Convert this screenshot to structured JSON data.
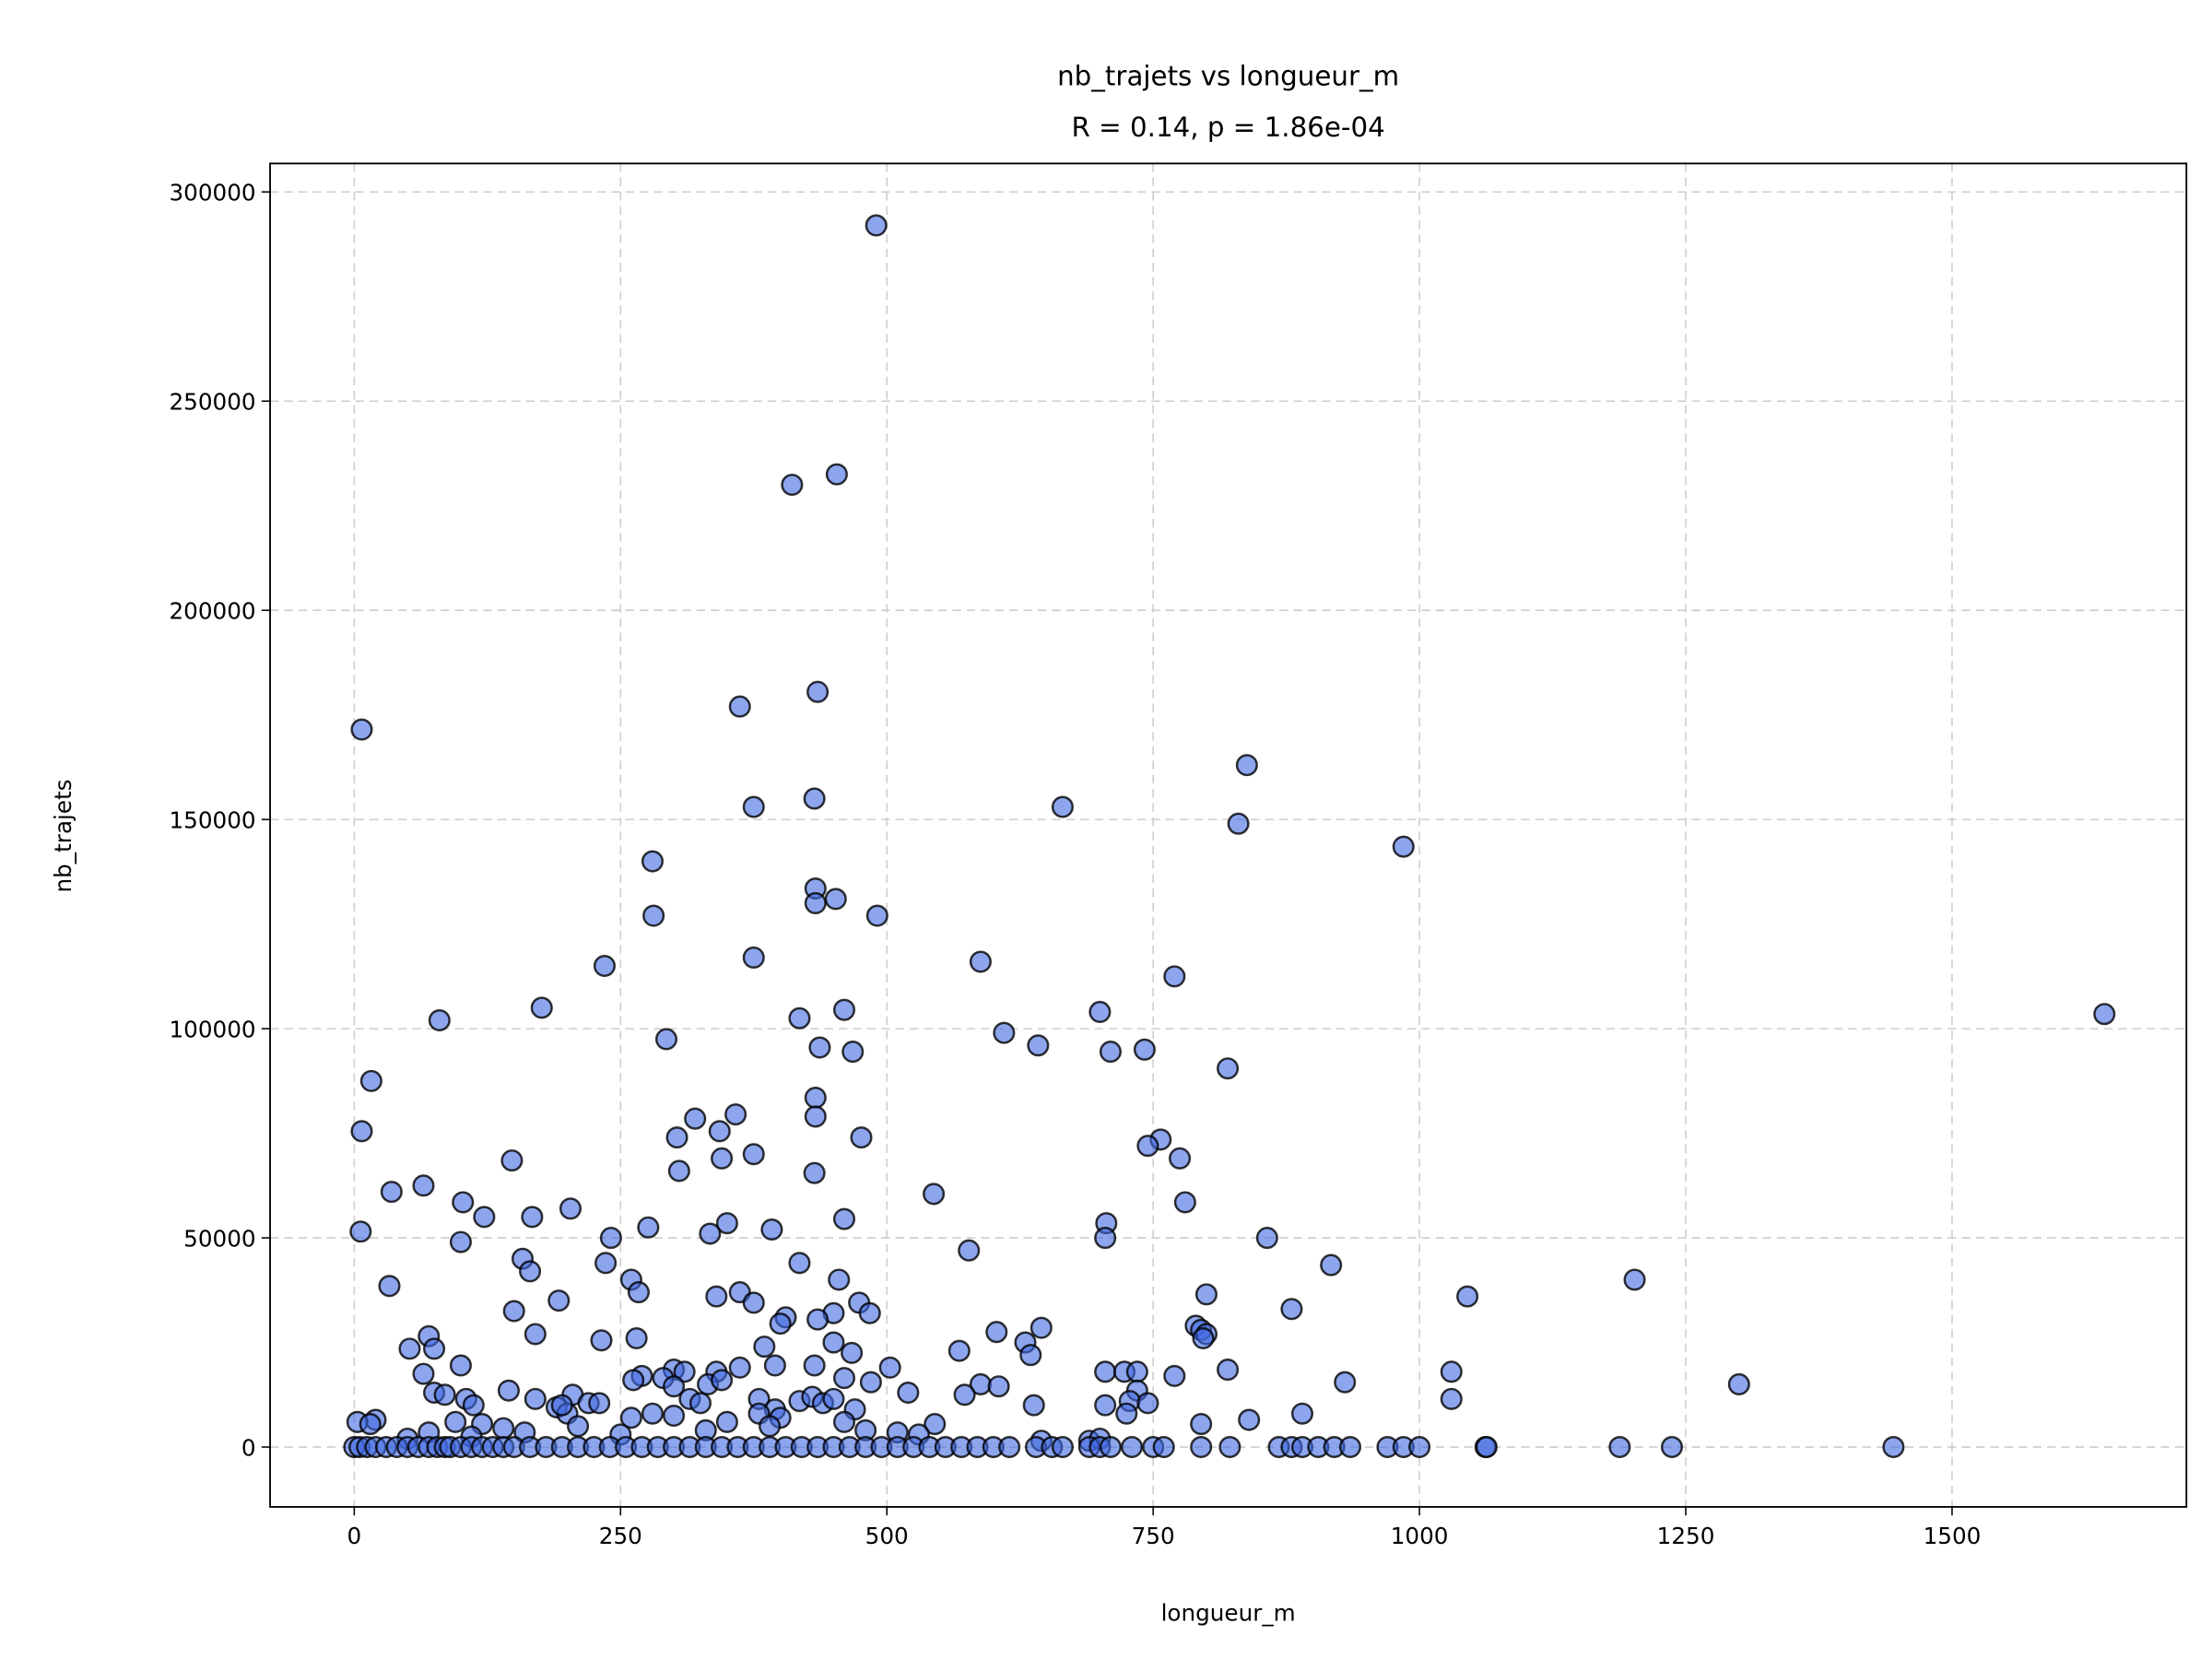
{
  "chart_data": {
    "type": "scatter",
    "title": "nb_trajets vs longueur_m",
    "subtitle": "R = 0.14, p = 1.86e-04",
    "x_label": "longueur_m",
    "y_label": "nb_trajets",
    "color": "#4169e1",
    "edgecolor": "#000000",
    "alpha": 0.6,
    "grid": true,
    "xlim": [
      -79,
      1720
    ],
    "ylim": [
      -14300,
      306800
    ],
    "xticks": [
      0,
      250,
      500,
      750,
      1000,
      1250,
      1500
    ],
    "yticks": [
      0,
      50000,
      100000,
      150000,
      200000,
      250000,
      300000
    ],
    "x": [
      490,
      453,
      411,
      7,
      435,
      362,
      432,
      375,
      838,
      665,
      830,
      985,
      280,
      433,
      433,
      452,
      491,
      281,
      375,
      235,
      588,
      770,
      1643,
      80,
      176,
      418,
      460,
      700,
      610,
      293,
      437,
      642,
      468,
      710,
      742,
      820,
      16,
      433,
      433,
      358,
      320,
      7,
      343,
      303,
      476,
      375,
      345,
      148,
      757,
      745,
      775,
      305,
      432,
      65,
      35,
      544,
      102,
      780,
      203,
      122,
      167,
      460,
      350,
      706,
      6,
      276,
      392,
      334,
      100,
      241,
      705,
      857,
      577,
      158,
      236,
      418,
      917,
      165,
      260,
      1202,
      455,
      33,
      267,
      362,
      340,
      800,
      1045,
      192,
      375,
      474,
      484,
      150,
      450,
      435,
      405,
      400,
      790,
      795,
      800,
      797,
      645,
      603,
      170,
      70,
      232,
      265,
      450,
      52,
      75,
      385,
      630,
      635,
      568,
      467,
      880,
      1030,
      1300,
      930,
      1030,
      770,
      705,
      723,
      735,
      820,
      100,
      65,
      300,
      310,
      340,
      362,
      395,
      432,
      503,
      270,
      290,
      262,
      300,
      332,
      345,
      460,
      485,
      588,
      605,
      573,
      520,
      145,
      75,
      85,
      105,
      112,
      170,
      205,
      220,
      190,
      200,
      195,
      230,
      315,
      325,
      380,
      395,
      418,
      430,
      440,
      450,
      470,
      638,
      735,
      728,
      745,
      840,
      890,
      795,
      705,
      725,
      260,
      280,
      300,
      350,
      400,
      380,
      20,
      3,
      15,
      95,
      120,
      140,
      160,
      210,
      250,
      330,
      390,
      460,
      480,
      510,
      545,
      530,
      645,
      690,
      700,
      50,
      70,
      110,
      0,
      5,
      12,
      20,
      30,
      40,
      50,
      60,
      70,
      78,
      85,
      90,
      100,
      110,
      120,
      130,
      140,
      150,
      165,
      180,
      195,
      210,
      225,
      240,
      255,
      270,
      285,
      300,
      315,
      330,
      345,
      360,
      375,
      390,
      405,
      420,
      435,
      450,
      465,
      480,
      495,
      510,
      525,
      540,
      555,
      570,
      585,
      600,
      615,
      640,
      655,
      665,
      690,
      700,
      710,
      730,
      750,
      760,
      795,
      822,
      868,
      880,
      890,
      905,
      920,
      935,
      970,
      985,
      1000,
      1062,
      1063,
      1188,
      1237,
      1445
    ],
    "values": [
      292000,
      232500,
      230000,
      171500,
      180500,
      177000,
      155000,
      153000,
      163000,
      153000,
      149000,
      143500,
      140000,
      133500,
      130000,
      131000,
      127000,
      127000,
      117000,
      115000,
      116000,
      112500,
      103500,
      102000,
      105000,
      102500,
      104500,
      104000,
      99000,
      97500,
      95500,
      96000,
      94500,
      94500,
      95000,
      90500,
      87500,
      83500,
      79000,
      79500,
      78500,
      75500,
      75500,
      74000,
      74000,
      70000,
      69000,
      68500,
      73500,
      72000,
      69000,
      66000,
      65500,
      62500,
      61000,
      60500,
      58500,
      58500,
      57000,
      55000,
      55000,
      54500,
      53500,
      53500,
      51500,
      52500,
      52000,
      51000,
      49000,
      50000,
      50000,
      50000,
      47000,
      45000,
      44000,
      44000,
      43500,
      42000,
      40000,
      40000,
      40000,
      38500,
      37000,
      37000,
      36000,
      36500,
      36000,
      35000,
      34500,
      34500,
      32000,
      32500,
      32000,
      30500,
      31000,
      29500,
      29000,
      28000,
      27000,
      26000,
      28500,
      27500,
      27000,
      26500,
      25500,
      26000,
      25000,
      23500,
      23500,
      24000,
      25000,
      22000,
      23000,
      22500,
      33000,
      18000,
      15000,
      15500,
      11500,
      17000,
      18000,
      18000,
      18000,
      18500,
      19500,
      17500,
      18500,
      18000,
      18000,
      19000,
      19500,
      19500,
      19000,
      17000,
      16500,
      16000,
      14500,
      15000,
      16000,
      16500,
      15500,
      15000,
      14500,
      12500,
      13000,
      13500,
      13000,
      12500,
      11500,
      10000,
      11500,
      12500,
      10500,
      9500,
      8000,
      10000,
      10500,
      11500,
      10500,
      11500,
      9000,
      11000,
      12000,
      10500,
      11500,
      9000,
      10000,
      13500,
      11000,
      10500,
      6500,
      8000,
      5500,
      10000,
      8000,
      7000,
      8000,
      7500,
      6000,
      7000,
      8000,
      6500,
      6000,
      5500,
      6000,
      5500,
      4500,
      3500,
      5000,
      3000,
      4000,
      5000,
      6000,
      4000,
      3500,
      5500,
      3000,
      1500,
      1500,
      2000,
      2000,
      3500,
      2500,
      0,
      0,
      0,
      0,
      0,
      0,
      0,
      0,
      0,
      0,
      0,
      0,
      0,
      0,
      0,
      0,
      0,
      0,
      0,
      0,
      0,
      0,
      0,
      0,
      0,
      0,
      0,
      0,
      0,
      0,
      0,
      0,
      0,
      0,
      0,
      0,
      0,
      0,
      0,
      0,
      0,
      0,
      0,
      0,
      0,
      0,
      0,
      0,
      0,
      0,
      0,
      0,
      0,
      0,
      0,
      0,
      0,
      0,
      0,
      0,
      0,
      0,
      0,
      0,
      0,
      0,
      0,
      0,
      0,
      0,
      0,
      0,
      0,
      0
    ]
  }
}
